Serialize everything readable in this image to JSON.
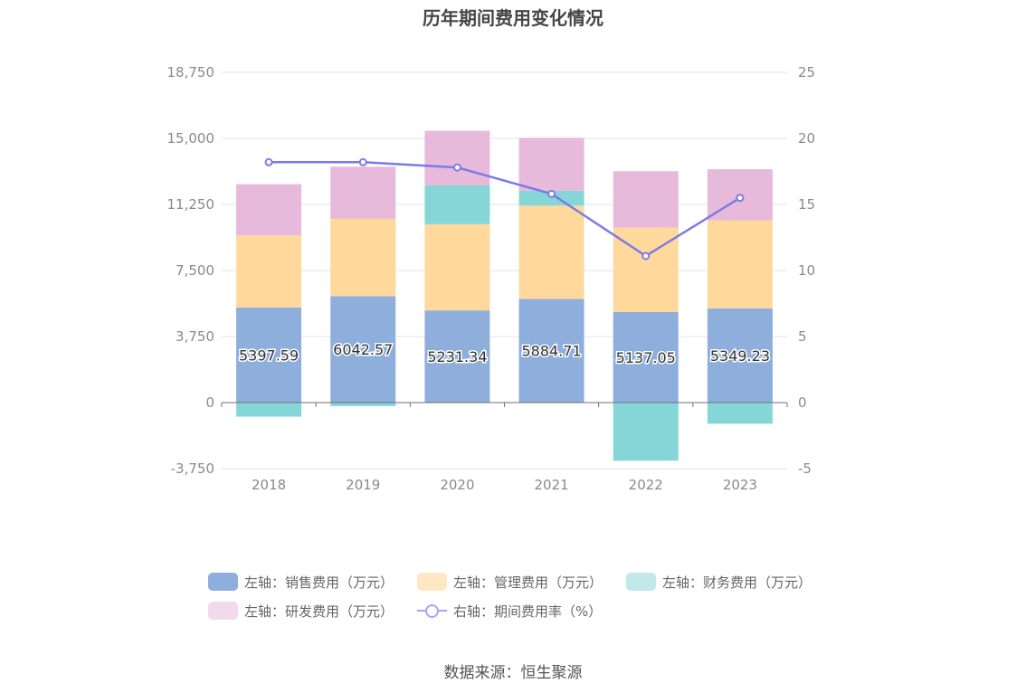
{
  "chart_data": {
    "type": "bar",
    "title": "历年期间费用变化情况",
    "categories": [
      "2018",
      "2019",
      "2020",
      "2021",
      "2022",
      "2023"
    ],
    "series": [
      {
        "name": "左轴：销售费用（万元）",
        "axis": "left",
        "color": "#8eaedb",
        "values": [
          5397.59,
          6042.57,
          5231.34,
          5884.71,
          5137.05,
          5349.23
        ]
      },
      {
        "name": "左轴：管理费用（万元）",
        "axis": "left",
        "color": "#ffd89c",
        "values": [
          4100,
          4400,
          4900,
          5300,
          4800,
          5000
        ]
      },
      {
        "name": "左轴：财务费用（万元）",
        "axis": "left",
        "color": "#86d6d8",
        "values": [
          -800,
          -200,
          2200,
          850,
          -3300,
          -1200
        ]
      },
      {
        "name": "左轴：研发费用（万元）",
        "axis": "left",
        "color": "#e7b9da",
        "values": [
          2900,
          2950,
          3100,
          3000,
          3200,
          2900
        ]
      },
      {
        "name": "右轴：期间费用率（%）",
        "axis": "right",
        "type": "line",
        "color": "#7b7be8",
        "values": [
          18.2,
          18.2,
          17.8,
          15.8,
          11.1,
          15.5
        ]
      }
    ],
    "data_labels": [
      "5397.59",
      "6042.57",
      "5231.34",
      "5884.71",
      "5137.05",
      "5349.23"
    ],
    "left_axis": {
      "ticks": [
        "18,750",
        "15,000",
        "11,250",
        "7,500",
        "3,750",
        "0",
        "-3,750"
      ],
      "ylim": [
        -3750,
        18750
      ]
    },
    "right_axis": {
      "ticks": [
        "25",
        "20",
        "15",
        "10",
        "5",
        "0",
        "-5"
      ],
      "ylim": [
        -5,
        25
      ]
    }
  },
  "legend": {
    "items": [
      {
        "label": "左轴：销售费用（万元）",
        "color": "#8eaedb",
        "kind": "bar"
      },
      {
        "label": "左轴：管理费用（万元）",
        "color": "#ffe7c4",
        "kind": "bar"
      },
      {
        "label": "左轴：财务费用（万元）",
        "color": "#c1e9ea",
        "kind": "bar"
      },
      {
        "label": "左轴：研发费用（万元）",
        "color": "#f3d9ec",
        "kind": "bar"
      },
      {
        "label": "右轴：期间费用率（%）",
        "color": "#a6a6f0",
        "kind": "line"
      }
    ]
  },
  "source": "数据来源：恒生聚源"
}
